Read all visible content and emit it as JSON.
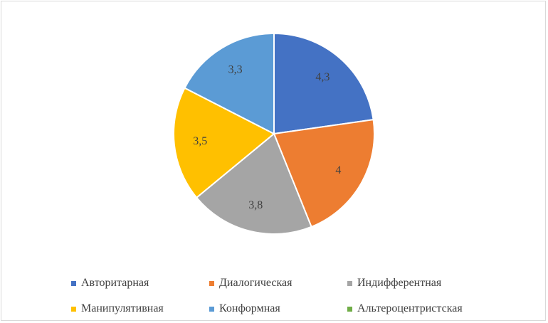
{
  "chart_data": {
    "type": "pie",
    "categories": [
      "Авторитарная",
      "Диалогическая",
      "Индифферентная",
      "Манипулятивная",
      "Конформная",
      "Альтероцентристская"
    ],
    "values": [
      4.3,
      4,
      3.8,
      3.5,
      3.3,
      0
    ],
    "data_labels": [
      "4,3",
      "4",
      "3,8",
      "3,5",
      "3,3",
      ""
    ],
    "colors": [
      "#4472c4",
      "#ed7d31",
      "#a5a5a5",
      "#ffc000",
      "#5b9bd5",
      "#70ad47"
    ],
    "legend_position": "bottom",
    "start_angle_deg": 0,
    "direction": "clockwise"
  },
  "legend": {
    "rows": [
      [
        {
          "label": "Авторитарная",
          "color": "#4472c4"
        },
        {
          "label": "Диалогическая",
          "color": "#ed7d31"
        },
        {
          "label": "Индифферентная",
          "color": "#a5a5a5"
        }
      ],
      [
        {
          "label": "Манипулятивная",
          "color": "#ffc000"
        },
        {
          "label": "Конформная",
          "color": "#5b9bd5"
        },
        {
          "label": "Альтероцентристская",
          "color": "#70ad47"
        }
      ]
    ]
  }
}
